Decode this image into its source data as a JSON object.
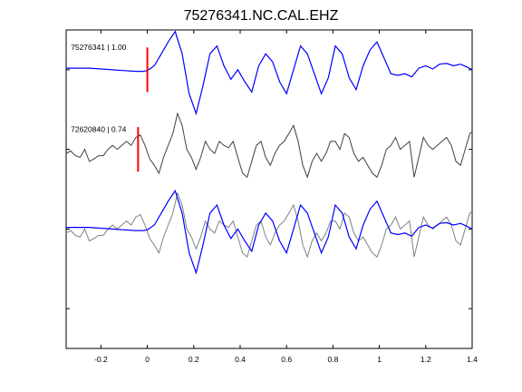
{
  "chart_data": {
    "type": "line",
    "title": "75276341.NC.CAL.EHZ",
    "xlabel": "",
    "ylabel": "",
    "xlim": [
      -0.35,
      1.4
    ],
    "ylim": [
      0,
      4
    ],
    "x_ticks": [
      -0.2,
      0,
      0.2,
      0.4,
      0.6,
      0.8,
      1.0,
      1.2,
      1.4
    ],
    "x_tick_labels": [
      "-0.2",
      "0",
      "0.2",
      "0.4",
      "0.6",
      "0.8",
      "1",
      "1.2",
      "1.4"
    ],
    "y_tick_positions": [
      0.5,
      1.5,
      2.5,
      3.5
    ],
    "grid": false,
    "colors": {
      "template": "#0000ff",
      "detection": "#404040",
      "overlay": "#808080",
      "pick": "#ff0000",
      "axes": "#000000"
    },
    "traces": [
      {
        "label": "75276341 | 1.00",
        "color": "template",
        "offset": 3.5,
        "pick_time": 0.0,
        "label_time": -0.33,
        "label_y": 3.75,
        "x": [
          -0.35,
          -0.3,
          -0.25,
          -0.2,
          -0.15,
          -0.1,
          -0.05,
          -0.02,
          0.0,
          0.03,
          0.06,
          0.09,
          0.12,
          0.15,
          0.18,
          0.21,
          0.24,
          0.27,
          0.3,
          0.33,
          0.36,
          0.39,
          0.42,
          0.45,
          0.48,
          0.51,
          0.54,
          0.57,
          0.6,
          0.63,
          0.66,
          0.69,
          0.72,
          0.75,
          0.78,
          0.81,
          0.84,
          0.87,
          0.9,
          0.93,
          0.96,
          0.99,
          1.02,
          1.05,
          1.08,
          1.11,
          1.14,
          1.17,
          1.2,
          1.23,
          1.26,
          1.29,
          1.32,
          1.35,
          1.38,
          1.4
        ],
        "y": [
          0.02,
          0.02,
          0.02,
          0.01,
          0.0,
          -0.01,
          -0.02,
          -0.02,
          -0.01,
          0.05,
          0.2,
          0.35,
          0.48,
          0.2,
          -0.3,
          -0.55,
          -0.2,
          0.2,
          0.3,
          0.05,
          -0.12,
          0.0,
          -0.15,
          -0.28,
          0.05,
          0.2,
          0.1,
          -0.15,
          -0.3,
          0.0,
          0.3,
          0.2,
          -0.05,
          -0.3,
          -0.1,
          0.3,
          0.2,
          -0.1,
          -0.25,
          0.05,
          0.25,
          0.35,
          0.15,
          -0.05,
          -0.07,
          -0.05,
          -0.09,
          0.02,
          0.05,
          0.01,
          0.07,
          0.08,
          0.05,
          0.07,
          0.03,
          0.0
        ]
      },
      {
        "label": "72620840 | 0.74",
        "color": "detection",
        "offset": 2.5,
        "pick_time": -0.04,
        "label_time": -0.33,
        "label_y": 2.72,
        "x": [
          -0.35,
          -0.33,
          -0.31,
          -0.29,
          -0.27,
          -0.25,
          -0.23,
          -0.21,
          -0.19,
          -0.17,
          -0.15,
          -0.13,
          -0.11,
          -0.09,
          -0.07,
          -0.05,
          -0.03,
          -0.01,
          0.01,
          0.03,
          0.05,
          0.07,
          0.09,
          0.11,
          0.13,
          0.15,
          0.17,
          0.19,
          0.21,
          0.23,
          0.25,
          0.27,
          0.29,
          0.31,
          0.33,
          0.35,
          0.37,
          0.39,
          0.41,
          0.43,
          0.45,
          0.47,
          0.49,
          0.51,
          0.53,
          0.55,
          0.57,
          0.59,
          0.61,
          0.63,
          0.65,
          0.67,
          0.69,
          0.71,
          0.73,
          0.75,
          0.77,
          0.79,
          0.81,
          0.83,
          0.85,
          0.87,
          0.89,
          0.91,
          0.93,
          0.95,
          0.97,
          0.99,
          1.01,
          1.03,
          1.05,
          1.07,
          1.09,
          1.11,
          1.13,
          1.15,
          1.17,
          1.19,
          1.21,
          1.23,
          1.25,
          1.27,
          1.29,
          1.31,
          1.33,
          1.35,
          1.37,
          1.39,
          1.4
        ],
        "y": [
          -0.05,
          -0.02,
          -0.08,
          -0.1,
          0.0,
          -0.15,
          -0.12,
          -0.08,
          -0.08,
          0.0,
          0.05,
          0.0,
          0.05,
          0.1,
          0.05,
          0.15,
          0.18,
          0.05,
          -0.12,
          -0.2,
          -0.3,
          -0.1,
          0.05,
          0.2,
          0.45,
          0.3,
          0.0,
          -0.1,
          -0.25,
          -0.1,
          0.1,
          0.0,
          -0.05,
          0.1,
          0.05,
          0.02,
          0.1,
          -0.1,
          -0.3,
          -0.35,
          -0.15,
          0.05,
          0.1,
          -0.1,
          -0.2,
          -0.05,
          0.05,
          0.1,
          0.2,
          0.3,
          0.1,
          -0.2,
          -0.35,
          -0.15,
          -0.05,
          -0.15,
          -0.05,
          0.1,
          0.1,
          0.0,
          0.2,
          0.15,
          -0.05,
          -0.15,
          -0.1,
          -0.2,
          -0.3,
          -0.35,
          -0.2,
          0.0,
          0.05,
          0.15,
          0.0,
          0.05,
          0.1,
          -0.35,
          -0.1,
          0.15,
          0.05,
          0.0,
          0.05,
          0.1,
          0.15,
          0.05,
          -0.15,
          -0.2,
          0.0,
          0.2,
          0.22
        ]
      },
      {
        "label": "",
        "color": "overlay",
        "offset": 1.5,
        "pick_time": null,
        "x": [
          -0.35,
          -0.33,
          -0.31,
          -0.29,
          -0.27,
          -0.25,
          -0.23,
          -0.21,
          -0.19,
          -0.17,
          -0.15,
          -0.13,
          -0.11,
          -0.09,
          -0.07,
          -0.05,
          -0.03,
          -0.01,
          0.01,
          0.03,
          0.05,
          0.07,
          0.09,
          0.11,
          0.13,
          0.15,
          0.17,
          0.19,
          0.21,
          0.23,
          0.25,
          0.27,
          0.29,
          0.31,
          0.33,
          0.35,
          0.37,
          0.39,
          0.41,
          0.43,
          0.45,
          0.47,
          0.49,
          0.51,
          0.53,
          0.55,
          0.57,
          0.59,
          0.61,
          0.63,
          0.65,
          0.67,
          0.69,
          0.71,
          0.73,
          0.75,
          0.77,
          0.79,
          0.81,
          0.83,
          0.85,
          0.87,
          0.89,
          0.91,
          0.93,
          0.95,
          0.97,
          0.99,
          1.01,
          1.03,
          1.05,
          1.07,
          1.09,
          1.11,
          1.13,
          1.15,
          1.17,
          1.19,
          1.21,
          1.23,
          1.25,
          1.27,
          1.29,
          1.31,
          1.33,
          1.35,
          1.37,
          1.39,
          1.4
        ],
        "y": [
          -0.05,
          -0.02,
          -0.08,
          -0.1,
          0.0,
          -0.15,
          -0.12,
          -0.08,
          -0.08,
          0.0,
          0.05,
          0.0,
          0.05,
          0.1,
          0.05,
          0.15,
          0.18,
          0.05,
          -0.12,
          -0.2,
          -0.3,
          -0.1,
          0.05,
          0.2,
          0.45,
          0.3,
          0.0,
          -0.1,
          -0.25,
          -0.1,
          0.1,
          0.0,
          -0.05,
          0.1,
          0.05,
          0.02,
          0.1,
          -0.1,
          -0.3,
          -0.35,
          -0.15,
          0.05,
          0.1,
          -0.1,
          -0.2,
          -0.05,
          0.05,
          0.1,
          0.2,
          0.3,
          0.1,
          -0.2,
          -0.35,
          -0.15,
          -0.05,
          -0.15,
          -0.05,
          0.1,
          0.1,
          0.0,
          0.2,
          0.15,
          -0.05,
          -0.15,
          -0.1,
          -0.2,
          -0.3,
          -0.35,
          -0.2,
          0.0,
          0.05,
          0.15,
          0.0,
          0.05,
          0.1,
          -0.35,
          -0.1,
          0.15,
          0.05,
          0.0,
          0.05,
          0.1,
          0.15,
          0.05,
          -0.15,
          -0.2,
          0.0,
          0.2,
          0.22
        ]
      },
      {
        "label": "",
        "color": "template",
        "offset": 1.5,
        "pick_time": null,
        "x": [
          -0.35,
          -0.3,
          -0.25,
          -0.2,
          -0.15,
          -0.1,
          -0.05,
          -0.02,
          0.0,
          0.03,
          0.06,
          0.09,
          0.12,
          0.15,
          0.18,
          0.21,
          0.24,
          0.27,
          0.3,
          0.33,
          0.36,
          0.39,
          0.42,
          0.45,
          0.48,
          0.51,
          0.54,
          0.57,
          0.6,
          0.63,
          0.66,
          0.69,
          0.72,
          0.75,
          0.78,
          0.81,
          0.84,
          0.87,
          0.9,
          0.93,
          0.96,
          0.99,
          1.02,
          1.05,
          1.08,
          1.11,
          1.14,
          1.17,
          1.2,
          1.23,
          1.26,
          1.29,
          1.32,
          1.35,
          1.38,
          1.4
        ],
        "y": [
          0.02,
          0.02,
          0.02,
          0.01,
          0.0,
          -0.01,
          -0.02,
          -0.02,
          -0.01,
          0.05,
          0.2,
          0.35,
          0.48,
          0.2,
          -0.3,
          -0.55,
          -0.2,
          0.2,
          0.3,
          0.05,
          -0.12,
          0.0,
          -0.15,
          -0.28,
          0.05,
          0.2,
          0.1,
          -0.15,
          -0.3,
          0.0,
          0.3,
          0.2,
          -0.05,
          -0.3,
          -0.1,
          0.3,
          0.2,
          -0.1,
          -0.25,
          0.05,
          0.25,
          0.35,
          0.15,
          -0.05,
          -0.07,
          -0.05,
          -0.09,
          0.02,
          0.05,
          0.01,
          0.07,
          0.08,
          0.05,
          0.07,
          0.03,
          0.0
        ]
      }
    ]
  }
}
